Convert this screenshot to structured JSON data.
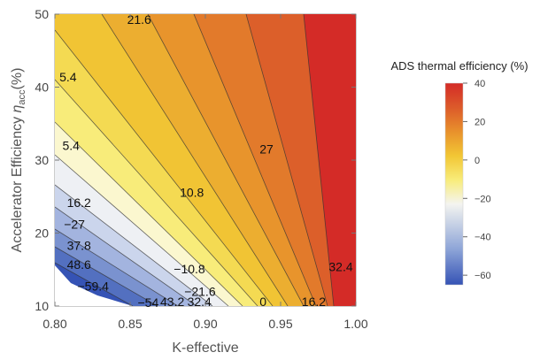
{
  "chart_data": {
    "type": "heatmap",
    "subtype": "contour",
    "xlabel": "K-effective",
    "ylabel_main": "Accelerator Efficiency ",
    "ylabel_symbol": "η",
    "ylabel_sub": "acc",
    "ylabel_unit": "(%)",
    "xlim": [
      0.8,
      1.0
    ],
    "ylim": [
      10,
      50
    ],
    "x_ticks": [
      "0.80",
      "0.85",
      "0.90",
      "0.95",
      "1.00"
    ],
    "y_ticks": [
      "10",
      "20",
      "30",
      "40",
      "50"
    ],
    "colorbar": {
      "title": "ADS thermal efficiency (%)",
      "range": [
        -65,
        40
      ],
      "ticks": [
        "40",
        "20",
        "0",
        "−20",
        "−40",
        "−60"
      ],
      "colors": [
        "#3553b5",
        "#8fa6d8",
        "#f4f4f0",
        "#f8ec7a",
        "#f2c634",
        "#e8912c",
        "#dc5a2a",
        "#d42b27"
      ]
    },
    "contour_labels": [
      {
        "text": "21.6",
        "x": 0.848,
        "y": 49.3
      },
      {
        "text": "5.4",
        "x": 0.803,
        "y": 41.4
      },
      {
        "text": "5.4",
        "x": 0.805,
        "y": 32.0
      },
      {
        "text": "27",
        "x": 0.936,
        "y": 31.5
      },
      {
        "text": "10.8",
        "x": 0.883,
        "y": 25.6
      },
      {
        "text": "16.2",
        "x": 0.808,
        "y": 24.2
      },
      {
        "text": "−27",
        "x": 0.806,
        "y": 21.2
      },
      {
        "text": "37.8",
        "x": 0.808,
        "y": 18.3
      },
      {
        "text": "48.6",
        "x": 0.808,
        "y": 15.7
      },
      {
        "text": "32.4",
        "x": 0.982,
        "y": 15.4
      },
      {
        "text": "−10.8",
        "x": 0.879,
        "y": 15.1
      },
      {
        "text": "−59.4",
        "x": 0.815,
        "y": 12.7
      },
      {
        "text": "−21.6",
        "x": 0.886,
        "y": 12.0
      },
      {
        "text": "−54",
        "x": 0.855,
        "y": 10.5
      },
      {
        "text": "43.2",
        "x": 0.87,
        "y": 10.6
      },
      {
        "text": "32.4",
        "x": 0.888,
        "y": 10.6
      },
      {
        "text": "0",
        "x": 0.936,
        "y": 10.6
      },
      {
        "text": "16.2",
        "x": 0.964,
        "y": 10.6
      }
    ]
  }
}
